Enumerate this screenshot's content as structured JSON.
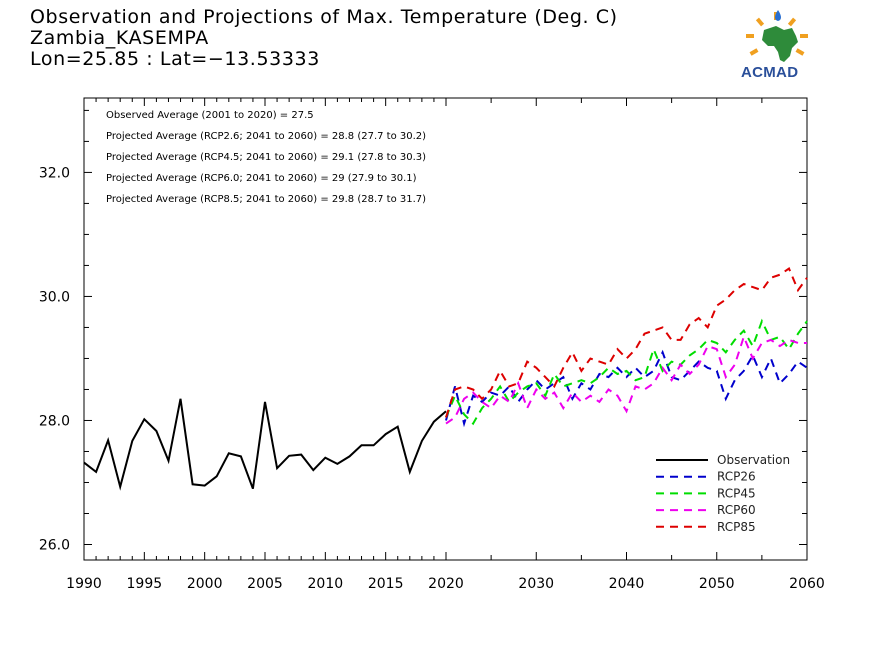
{
  "header": {
    "title": "Observation and Projections of Max. Temperature (Deg. C)",
    "location": "Zambia_KASEMPA",
    "coords": "Lon=25.85 : Lat=−13.53333"
  },
  "logo": {
    "text": "ACMAD",
    "icon": "acmad-africa-logo"
  },
  "annotations": [
    "Observed Average (2001 to 2020) = 27.5",
    "Projected Average (RCP2.6; 2041 to 2060) = 28.8 (27.7 to 30.2)",
    "Projected Average (RCP4.5; 2041 to 2060) = 29.1 (27.8 to 30.3)",
    "Projected Average (RCP6.0; 2041 to 2060) = 29 (27.9 to 30.1)",
    "Projected Average (RCP8.5; 2041 to 2060) = 29.8 (28.7 to 31.7)"
  ],
  "chart_data": {
    "type": "line",
    "title": "Observation and Projections of Max. Temperature (Deg. C)",
    "xlim": [
      1990,
      2060
    ],
    "ylim": [
      25.75,
      33.2
    ],
    "x_ticks": [
      1990,
      1995,
      2000,
      2005,
      2010,
      2015,
      2020,
      2030,
      2040,
      2050,
      2060
    ],
    "y_ticks": [
      26.0,
      28.0,
      30.0,
      32.0
    ],
    "y_tick_labels": [
      "26.0",
      "28.0",
      "30.0",
      "32.0"
    ],
    "legend_position": "bottom-right",
    "series": [
      {
        "name": "Observation",
        "color": "#000000",
        "style": "solid",
        "x": [
          1990,
          1991,
          1992,
          1993,
          1994,
          1995,
          1996,
          1997,
          1998,
          1999,
          2000,
          2001,
          2002,
          2003,
          2004,
          2005,
          2006,
          2007,
          2008,
          2009,
          2010,
          2011,
          2012,
          2013,
          2014,
          2015,
          2016,
          2017,
          2018,
          2019,
          2020
        ],
        "values": [
          27.32,
          27.17,
          27.68,
          26.93,
          27.67,
          28.02,
          27.83,
          27.35,
          28.35,
          26.97,
          26.95,
          27.1,
          27.47,
          27.42,
          26.9,
          28.3,
          27.23,
          27.43,
          27.45,
          27.2,
          27.4,
          27.3,
          27.42,
          27.6,
          27.6,
          27.78,
          27.9,
          27.17,
          27.67,
          27.98,
          28.15
        ]
      },
      {
        "name": "RCP26",
        "color": "#0000cc",
        "style": "dashed",
        "x": [
          2020,
          2021,
          2022,
          2023,
          2024,
          2025,
          2026,
          2027,
          2028,
          2029,
          2030,
          2031,
          2032,
          2033,
          2034,
          2035,
          2036,
          2037,
          2038,
          2039,
          2040,
          2041,
          2042,
          2043,
          2044,
          2045,
          2046,
          2047,
          2048,
          2049,
          2050,
          2051,
          2052,
          2053,
          2054,
          2055,
          2056,
          2057,
          2058,
          2059,
          2060
        ],
        "values": [
          28.0,
          28.55,
          27.95,
          28.4,
          28.3,
          28.45,
          28.4,
          28.55,
          28.3,
          28.5,
          28.65,
          28.5,
          28.6,
          28.7,
          28.35,
          28.6,
          28.5,
          28.75,
          28.7,
          28.85,
          28.7,
          28.85,
          28.7,
          28.8,
          29.1,
          28.7,
          28.65,
          28.8,
          28.95,
          28.85,
          28.8,
          28.35,
          28.65,
          28.8,
          29.05,
          28.7,
          29.0,
          28.6,
          28.75,
          28.95,
          28.85
        ]
      },
      {
        "name": "RCP45",
        "color": "#00dd00",
        "style": "dashed",
        "x": [
          2020,
          2021,
          2022,
          2023,
          2024,
          2025,
          2026,
          2027,
          2028,
          2029,
          2030,
          2031,
          2032,
          2033,
          2034,
          2035,
          2036,
          2037,
          2038,
          2039,
          2040,
          2041,
          2042,
          2043,
          2044,
          2045,
          2046,
          2047,
          2048,
          2049,
          2050,
          2051,
          2052,
          2053,
          2054,
          2055,
          2056,
          2057,
          2058,
          2059,
          2060
        ],
        "values": [
          28.05,
          28.4,
          28.1,
          27.95,
          28.2,
          28.35,
          28.55,
          28.3,
          28.45,
          28.55,
          28.6,
          28.4,
          28.75,
          28.55,
          28.6,
          28.65,
          28.6,
          28.7,
          28.85,
          28.75,
          28.8,
          28.65,
          28.7,
          29.15,
          28.8,
          28.95,
          28.9,
          29.05,
          29.15,
          29.3,
          29.25,
          29.1,
          29.3,
          29.45,
          29.2,
          29.6,
          29.3,
          29.35,
          29.15,
          29.4,
          29.6
        ]
      },
      {
        "name": "RCP60",
        "color": "#ee00ee",
        "style": "dashed",
        "x": [
          2020,
          2021,
          2022,
          2023,
          2024,
          2025,
          2026,
          2027,
          2028,
          2029,
          2030,
          2031,
          2032,
          2033,
          2034,
          2035,
          2036,
          2037,
          2038,
          2039,
          2040,
          2041,
          2042,
          2043,
          2044,
          2045,
          2046,
          2047,
          2048,
          2049,
          2050,
          2051,
          2052,
          2053,
          2054,
          2055,
          2056,
          2057,
          2058,
          2059,
          2060
        ],
        "values": [
          27.95,
          28.05,
          28.35,
          28.45,
          28.3,
          28.2,
          28.4,
          28.3,
          28.6,
          28.2,
          28.5,
          28.35,
          28.45,
          28.2,
          28.45,
          28.3,
          28.4,
          28.3,
          28.5,
          28.4,
          28.15,
          28.55,
          28.5,
          28.6,
          28.85,
          28.65,
          28.9,
          28.75,
          28.9,
          29.2,
          29.15,
          28.7,
          28.9,
          29.35,
          29.0,
          29.25,
          29.3,
          29.2,
          29.3,
          29.25,
          29.25
        ]
      },
      {
        "name": "RCP85",
        "color": "#dd0000",
        "style": "dashed",
        "x": [
          2020,
          2021,
          2022,
          2023,
          2024,
          2025,
          2026,
          2027,
          2028,
          2029,
          2030,
          2031,
          2032,
          2033,
          2034,
          2035,
          2036,
          2037,
          2038,
          2039,
          2040,
          2041,
          2042,
          2043,
          2044,
          2045,
          2046,
          2047,
          2048,
          2049,
          2050,
          2051,
          2052,
          2053,
          2054,
          2055,
          2056,
          2057,
          2058,
          2059,
          2060
        ],
        "values": [
          28.05,
          28.5,
          28.55,
          28.5,
          28.35,
          28.5,
          28.8,
          28.55,
          28.6,
          28.95,
          28.85,
          28.7,
          28.55,
          28.85,
          29.1,
          28.8,
          29.0,
          28.95,
          28.9,
          29.15,
          29.0,
          29.15,
          29.4,
          29.45,
          29.5,
          29.3,
          29.3,
          29.55,
          29.65,
          29.5,
          29.85,
          29.95,
          30.1,
          30.2,
          30.15,
          30.1,
          30.3,
          30.35,
          30.45,
          30.1,
          30.3
        ]
      }
    ]
  }
}
